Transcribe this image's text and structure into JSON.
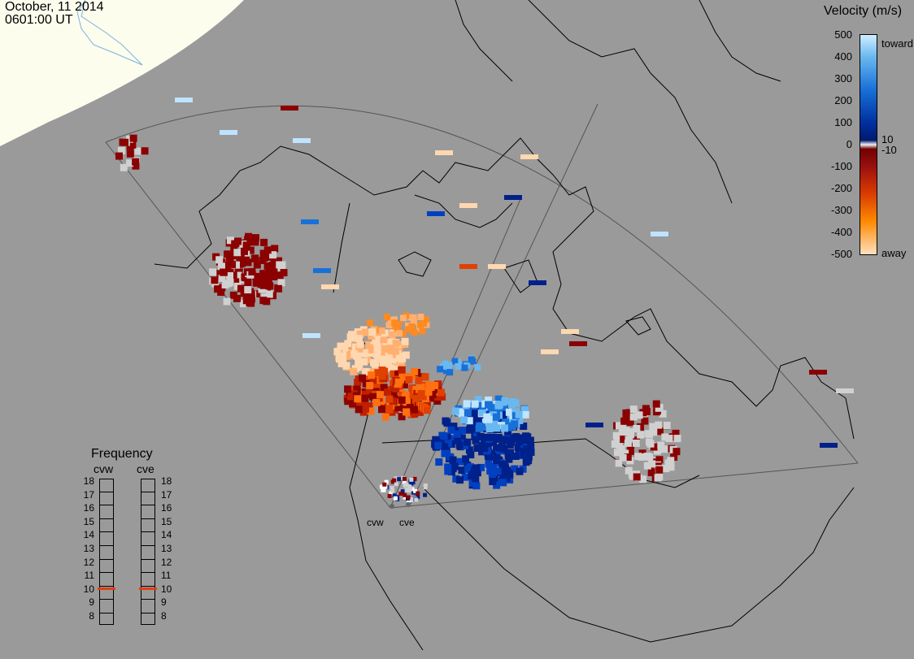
{
  "header": {
    "date": "October, 11 2014",
    "time": "0601:00 UT"
  },
  "colorbar": {
    "title": "Velocity (m/s)",
    "ticks": [
      "500",
      "400",
      "300",
      "200",
      "100",
      "10",
      "0",
      "-10",
      "-100",
      "-200",
      "-300",
      "-400",
      "-500"
    ],
    "top_label": "toward",
    "bottom_label": "away"
  },
  "frequency_panel": {
    "title": "Frequency",
    "units_note": "",
    "columns": [
      {
        "label": "cvw",
        "selected": 10.5
      },
      {
        "label": "cve",
        "selected": 10.5
      }
    ],
    "scale": [
      "18",
      "17",
      "16",
      "15",
      "14",
      "13",
      "12",
      "11",
      "10",
      "9",
      "8"
    ]
  },
  "radars": [
    {
      "label": "cvw"
    },
    {
      "label": "cve"
    }
  ],
  "colors": {
    "background": "#9a9a9a",
    "land_outline": "#000000",
    "daylight": "#fdfdee",
    "toward_dark": "#00208a",
    "toward_light": "#bfe4ff",
    "away_dark": "#8b0000",
    "away_light": "#ffd7b0",
    "ground_scatter": "#d0d0d0"
  }
}
